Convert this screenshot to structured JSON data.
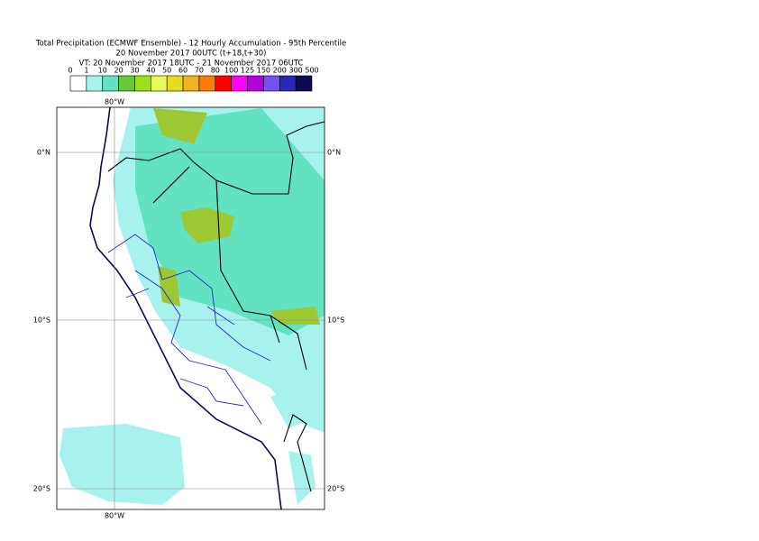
{
  "header": {
    "title": "Total Precipitation (ECMWF Ensemble) - 12 Hourly Accumulation - 95th Percentile",
    "base_time": "20 November 2017 00UTC (t+18,t+30)",
    "valid_time": "VT: 20 November 2017 18UTC - 21 November 2017 06UTC"
  },
  "legend": {
    "labels": [
      "0",
      "1",
      "10",
      "20",
      "30",
      "40",
      "50",
      "60",
      "70",
      "80",
      "100",
      "125",
      "150",
      "200",
      "300",
      "500"
    ],
    "colors": [
      "#ffffff",
      "#a8f2ee",
      "#62e2c0",
      "#68c83a",
      "#9ee01e",
      "#e6f85a",
      "#e6dc1e",
      "#f0b41e",
      "#fa7d0a",
      "#ff0000",
      "#ff00ff",
      "#b400dc",
      "#7850f0",
      "#2828b4",
      "#0a0a50"
    ]
  },
  "map": {
    "top_labels": [
      "80°W"
    ],
    "bottom_labels": [
      "80°W"
    ],
    "left_labels": [
      "0°N",
      "10°S",
      "20°S"
    ],
    "right_labels": [
      "0°N",
      "10°S",
      "20°S"
    ]
  }
}
